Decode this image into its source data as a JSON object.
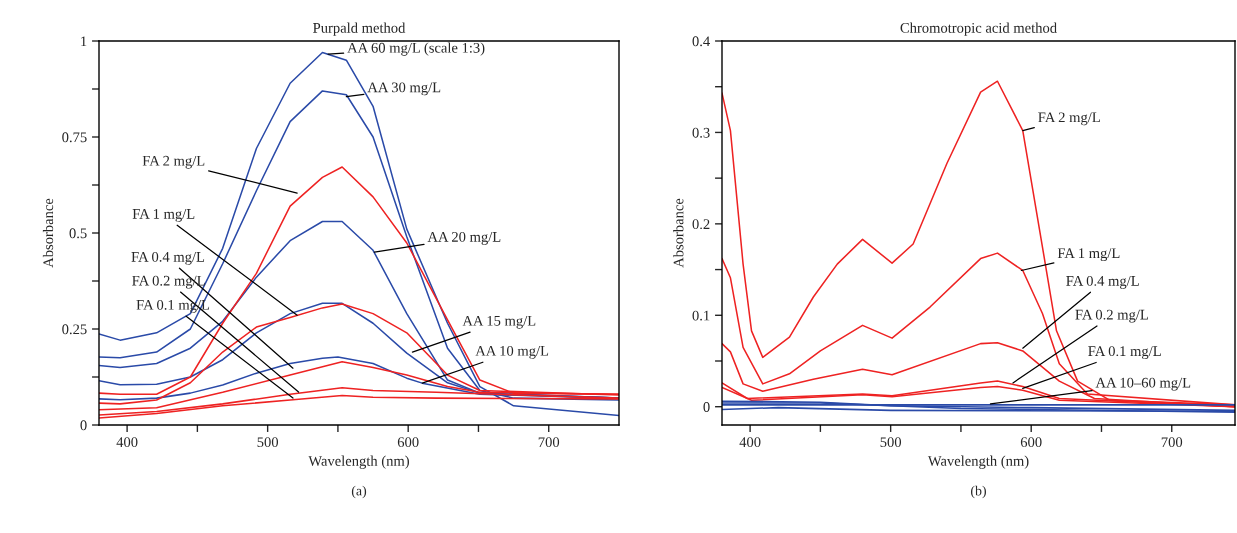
{
  "chart_data": [
    {
      "type": "line",
      "title": "Purpald method",
      "xlabel": "Wavelength (nm)",
      "ylabel": "Absorbance",
      "xlim": [
        380,
        750
      ],
      "ylim": [
        0,
        1
      ],
      "xticks": [
        400,
        {
          "value": 450,
          "label": null
        },
        500,
        {
          "value": 550,
          "label": null
        },
        600,
        {
          "value": 650,
          "label": null
        },
        700
      ],
      "yticks": [
        0,
        {
          "value": 0.125,
          "label": null
        },
        0.25,
        {
          "value": 0.375,
          "label": null
        },
        0.5,
        {
          "value": 0.625,
          "label": null
        },
        0.75,
        {
          "value": 0.875,
          "label": null
        },
        1
      ],
      "grid": false,
      "legend": false,
      "marker": "none",
      "line_style": "solid",
      "series": [
        {
          "color": "#2a4aa8",
          "x": [
            380,
            395,
            421,
            445,
            468,
            492,
            516,
            539,
            556,
            575,
            599,
            628,
            651,
            675,
            750
          ],
          "values": [
            0.237,
            0.221,
            0.24,
            0.29,
            0.46,
            0.72,
            0.89,
            0.97,
            0.95,
            0.83,
            0.51,
            0.265,
            0.1,
            0.05,
            0.025
          ]
        },
        {
          "color": "#2a4aa8",
          "x": [
            380,
            395,
            421,
            445,
            468,
            492,
            516,
            539,
            556,
            575,
            599,
            628,
            651,
            675,
            750
          ],
          "values": [
            0.177,
            0.175,
            0.19,
            0.25,
            0.42,
            0.61,
            0.79,
            0.87,
            0.86,
            0.75,
            0.49,
            0.2,
            0.09,
            0.07,
            0.065
          ]
        },
        {
          "color": "#2a4aa8",
          "x": [
            380,
            395,
            421,
            445,
            468,
            492,
            516,
            539,
            553,
            575,
            599,
            628,
            651,
            750
          ],
          "values": [
            0.155,
            0.15,
            0.16,
            0.2,
            0.27,
            0.385,
            0.48,
            0.53,
            0.53,
            0.455,
            0.29,
            0.117,
            0.083,
            0.07
          ]
        },
        {
          "color": "#2a4aa8",
          "x": [
            380,
            395,
            421,
            445,
            468,
            492,
            516,
            539,
            553,
            575,
            599,
            628,
            651,
            750
          ],
          "values": [
            0.115,
            0.105,
            0.106,
            0.125,
            0.17,
            0.24,
            0.29,
            0.317,
            0.317,
            0.265,
            0.187,
            0.11,
            0.083,
            0.07
          ]
        },
        {
          "color": "#2a4aa8",
          "x": [
            380,
            395,
            421,
            445,
            468,
            492,
            516,
            539,
            550,
            575,
            599,
            610,
            651,
            750
          ],
          "values": [
            0.068,
            0.066,
            0.07,
            0.083,
            0.104,
            0.135,
            0.16,
            0.174,
            0.177,
            0.16,
            0.122,
            0.109,
            0.08,
            0.07
          ]
        },
        {
          "color": "#ee2222",
          "x": [
            380,
            395,
            421,
            445,
            468,
            492,
            516,
            539,
            553,
            575,
            599,
            628,
            651,
            675,
            750
          ],
          "values": [
            0.083,
            0.08,
            0.08,
            0.125,
            0.265,
            0.395,
            0.57,
            0.645,
            0.672,
            0.594,
            0.474,
            0.274,
            0.117,
            0.083,
            0.08
          ]
        },
        {
          "color": "#ee2222",
          "x": [
            380,
            395,
            421,
            445,
            468,
            492,
            516,
            539,
            553,
            575,
            599,
            628,
            651,
            750
          ],
          "values": [
            0.057,
            0.055,
            0.065,
            0.11,
            0.19,
            0.255,
            0.28,
            0.305,
            0.315,
            0.29,
            0.24,
            0.13,
            0.09,
            0.078
          ]
        },
        {
          "color": "#ee2222",
          "x": [
            380,
            421,
            468,
            516,
            553,
            575,
            599,
            628,
            651,
            750
          ],
          "values": [
            0.04,
            0.045,
            0.085,
            0.13,
            0.165,
            0.15,
            0.13,
            0.1,
            0.085,
            0.08
          ]
        },
        {
          "color": "#ee2222",
          "x": [
            380,
            421,
            468,
            516,
            553,
            575,
            620,
            750
          ],
          "values": [
            0.026,
            0.035,
            0.055,
            0.08,
            0.097,
            0.09,
            0.085,
            0.07
          ]
        },
        {
          "color": "#ee2222",
          "x": [
            380,
            421,
            468,
            516,
            553,
            575,
            620,
            750
          ],
          "values": [
            0.018,
            0.03,
            0.05,
            0.065,
            0.077,
            0.072,
            0.07,
            0.068
          ]
        }
      ],
      "annotations": [
        {
          "text": "AA 60 mg/L (scale 1:3)",
          "x": 543,
          "y": 0.966
        },
        {
          "text": "AA 30 mg/L",
          "x": 556,
          "y": 0.855
        },
        {
          "text": "FA 2 mg/L",
          "x": 521,
          "y": 0.604
        },
        {
          "text": "FA 1 mg/L",
          "x": 521,
          "y": 0.286
        },
        {
          "text": "FA 0.4 mg/L",
          "x": 518,
          "y": 0.148
        },
        {
          "text": "FA 0.2 mg/L",
          "x": 522,
          "y": 0.086
        },
        {
          "text": "FA 0.1 mg/L",
          "x": 518,
          "y": 0.07
        },
        {
          "text": "AA 20 mg/L",
          "x": 576,
          "y": 0.45
        },
        {
          "text": "AA 15 mg/L",
          "x": 603,
          "y": 0.19
        },
        {
          "text": "AA 10 mg/L",
          "x": 610,
          "y": 0.109
        },
        "(a)"
      ]
    },
    {
      "type": "line",
      "title": "Chromotropic acid method",
      "xlabel": "Wavelength (nm)",
      "ylabel": "Absorbance",
      "xlim": [
        380,
        745
      ],
      "ylim": [
        -0.02,
        0.4
      ],
      "xticks": [
        400,
        {
          "value": 450,
          "label": null
        },
        500,
        {
          "value": 550,
          "label": null
        },
        600,
        {
          "value": 650,
          "label": null
        },
        700
      ],
      "yticks": [
        0,
        {
          "value": 0.05,
          "label": null
        },
        0.1,
        {
          "value": 0.15,
          "label": null
        },
        0.2,
        {
          "value": 0.25,
          "label": null
        },
        0.3,
        {
          "value": 0.35,
          "label": null
        },
        0.4
      ],
      "grid": false,
      "legend": false,
      "marker": "none",
      "line_style": "solid",
      "series": [
        {
          "color": "#ee2222",
          "x": [
            380,
            386,
            395,
            401,
            409,
            428,
            445,
            462,
            480,
            501,
            516,
            540,
            564,
            576,
            594,
            606,
            618,
            633,
            656,
            745
          ],
          "values": [
            0.343,
            0.302,
            0.156,
            0.083,
            0.054,
            0.076,
            0.12,
            0.156,
            0.183,
            0.157,
            0.178,
            0.266,
            0.344,
            0.356,
            0.302,
            0.193,
            0.083,
            0.028,
            0.007,
            0.002
          ]
        },
        {
          "color": "#ee2222",
          "x": [
            380,
            386,
            395,
            409,
            428,
            450,
            480,
            501,
            528,
            564,
            576,
            594,
            608,
            620,
            640,
            745
          ],
          "values": [
            0.162,
            0.141,
            0.065,
            0.025,
            0.036,
            0.061,
            0.089,
            0.075,
            0.109,
            0.162,
            0.168,
            0.149,
            0.102,
            0.047,
            0.014,
            0.002
          ]
        },
        {
          "color": "#ee2222",
          "x": [
            380,
            386,
            395,
            409,
            445,
            480,
            501,
            564,
            576,
            594,
            620,
            645,
            745
          ],
          "values": [
            0.069,
            0.06,
            0.025,
            0.017,
            0.03,
            0.041,
            0.035,
            0.069,
            0.07,
            0.061,
            0.028,
            0.009,
            0.0
          ]
        },
        {
          "color": "#ee2222",
          "x": [
            380,
            398,
            480,
            501,
            564,
            576,
            594,
            620,
            745
          ],
          "values": [
            0.026,
            0.009,
            0.014,
            0.012,
            0.026,
            0.028,
            0.022,
            0.009,
            0.0
          ]
        },
        {
          "color": "#ee2222",
          "x": [
            380,
            401,
            480,
            501,
            564,
            576,
            594,
            620,
            745
          ],
          "values": [
            0.021,
            0.007,
            0.013,
            0.011,
            0.021,
            0.022,
            0.018,
            0.007,
            0.0
          ]
        },
        {
          "color": "#2a4aa8",
          "x": [
            380,
            450,
            500,
            600,
            745
          ],
          "values": [
            0.006,
            0.005,
            0.001,
            -0.001,
            -0.004
          ]
        },
        {
          "color": "#2a4aa8",
          "x": [
            380,
            450,
            550,
            745
          ],
          "values": [
            0.004,
            0.004,
            -0.002,
            -0.006
          ]
        },
        {
          "color": "#2a4aa8",
          "x": [
            380,
            745
          ],
          "values": [
            0.002,
            0.002
          ]
        },
        {
          "color": "#2a4aa8",
          "x": [
            380,
            420,
            500,
            745
          ],
          "values": [
            -0.003,
            -0.001,
            -0.004,
            -0.005
          ]
        }
      ],
      "annotations": [
        {
          "text": "FA 2 mg/L",
          "x": 594,
          "y": 0.302
        },
        {
          "text": "FA 1 mg/L",
          "x": 593,
          "y": 0.149
        },
        {
          "text": "FA 0.4 mg/L",
          "x": 594,
          "y": 0.064
        },
        {
          "text": "FA 0.2 mg/L",
          "x": 587,
          "y": 0.026
        },
        {
          "text": "FA 0.1 mg/L",
          "x": 594,
          "y": 0.02
        },
        {
          "text": "AA 10–60 mg/L",
          "x": 571,
          "y": 0.003
        },
        "(b)"
      ]
    }
  ]
}
